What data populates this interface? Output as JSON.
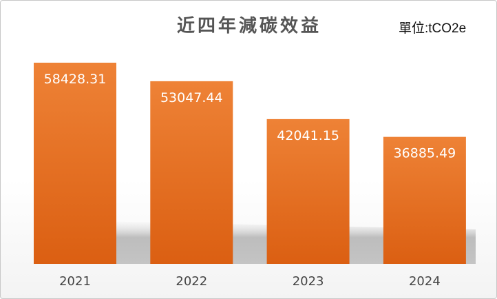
{
  "chart_data": {
    "type": "bar",
    "title": "近四年減碳效益",
    "unit_label": "單位:tCO2e",
    "categories": [
      "2021",
      "2022",
      "2023",
      "2024"
    ],
    "values": [
      58428.31,
      53047.44,
      42041.15,
      36885.49
    ],
    "data_labels": [
      "58428.31",
      "53047.44",
      "42041.15",
      "36885.49"
    ],
    "xlabel": "",
    "ylabel": "",
    "ylim": [
      0,
      60000
    ],
    "grid": false,
    "legend": "none",
    "colors": {
      "bar_top": "#EE8236",
      "bar_bottom": "#DB5F12",
      "title": "#555555"
    }
  }
}
